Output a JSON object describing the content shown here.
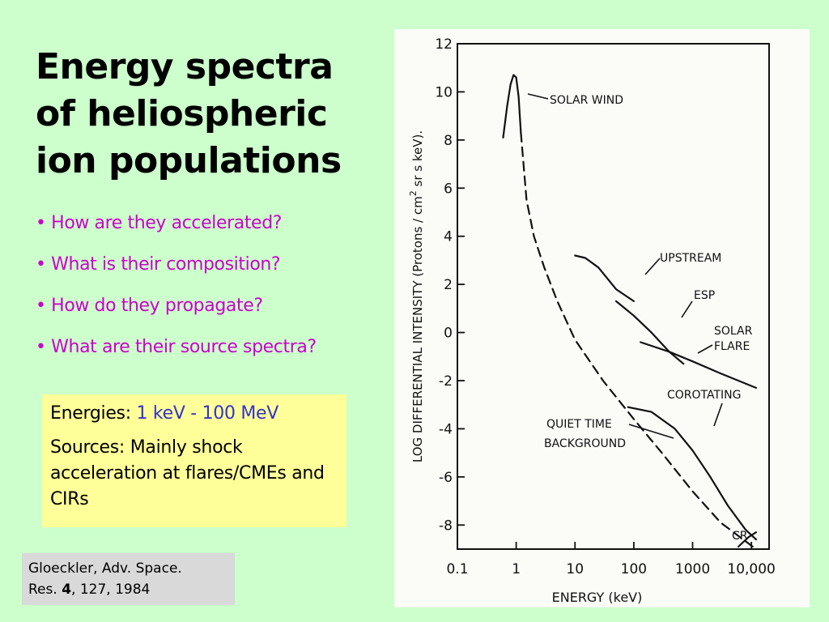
{
  "slide": {
    "title_lines": [
      "Energy spectra",
      "of heliospheric",
      "ion populations"
    ],
    "bullets": [
      "• How are they accelerated?",
      "• What is their composition?",
      "• How do they propagate?",
      "• What are their source spectra?"
    ],
    "energies_label": "Energies:",
    "energies_value": "1 keV - 100 MeV",
    "sources_text": "Sources: Mainly shock acceleration at flares/CMEs and CIRs",
    "citation_line1": "Gloeckler, Adv. Space.",
    "citation_res": "Res.",
    "citation_vol": "4",
    "citation_rest": ", 127, 1984"
  },
  "colors": {
    "background": "#ccffcc",
    "title": "#000000",
    "bullet": "#cc00cc",
    "highlight": "#3333cc",
    "box": "#ffff99",
    "citation_box": "#d9d9d9"
  },
  "chart_data": {
    "type": "line",
    "xlabel": "ENERGY (keV)",
    "ylabel_parts": [
      "LOG DIFFERENTIAL INTENSITY (Protons / cm",
      "2",
      "sr s keV)."
    ],
    "x_scale": "log",
    "xlim": [
      0.1,
      20000
    ],
    "ylim": [
      -9,
      12
    ],
    "x_ticks": [
      {
        "v": 0.1,
        "label": "0.1"
      },
      {
        "v": 1,
        "label": "1"
      },
      {
        "v": 10,
        "label": "10"
      },
      {
        "v": 100,
        "label": "100"
      },
      {
        "v": 1000,
        "label": "1000"
      },
      {
        "v": 10000,
        "label": "10,000"
      }
    ],
    "y_ticks": [
      12,
      10,
      8,
      6,
      4,
      2,
      0,
      -2,
      -4,
      -6,
      -8
    ],
    "series": [
      {
        "name": "SOLAR WIND",
        "dash": false,
        "points": [
          [
            0.6,
            8.1
          ],
          [
            0.7,
            9.4
          ],
          [
            0.8,
            10.3
          ],
          [
            0.9,
            10.7
          ],
          [
            1.0,
            10.6
          ],
          [
            1.1,
            9.8
          ],
          [
            1.2,
            8.3
          ]
        ]
      },
      {
        "name": "QUIET TIME BACKGROUND",
        "dash": true,
        "points": [
          [
            1.2,
            8.3
          ],
          [
            1.5,
            5.5
          ],
          [
            2,
            4
          ],
          [
            3,
            2.7
          ],
          [
            5,
            1.3
          ],
          [
            10,
            -0.3
          ],
          [
            30,
            -2.0
          ],
          [
            100,
            -3.6
          ],
          [
            300,
            -5.0
          ],
          [
            1000,
            -6.6
          ],
          [
            3000,
            -7.9
          ],
          [
            12000,
            -9.0
          ]
        ]
      },
      {
        "name": "UPSTREAM",
        "dash": false,
        "points": [
          [
            10,
            3.2
          ],
          [
            15,
            3.1
          ],
          [
            25,
            2.7
          ],
          [
            50,
            1.8
          ],
          [
            100,
            1.3
          ]
        ]
      },
      {
        "name": "ESP",
        "dash": false,
        "points": [
          [
            50,
            1.3
          ],
          [
            100,
            0.7
          ],
          [
            200,
            0.0
          ],
          [
            400,
            -0.8
          ],
          [
            700,
            -1.3
          ]
        ]
      },
      {
        "name": "SOLAR FLARE",
        "dash": false,
        "points": [
          [
            130,
            -0.4
          ],
          [
            400,
            -0.8
          ],
          [
            1000,
            -1.2
          ],
          [
            3000,
            -1.7
          ],
          [
            12000,
            -2.3
          ]
        ]
      },
      {
        "name": "COROTATING",
        "dash": false,
        "points": [
          [
            80,
            -3.1
          ],
          [
            200,
            -3.3
          ],
          [
            500,
            -4.0
          ],
          [
            1000,
            -4.9
          ],
          [
            2000,
            -6.0
          ],
          [
            4000,
            -7.2
          ],
          [
            8000,
            -8.2
          ],
          [
            12000,
            -8.6
          ]
        ]
      },
      {
        "name": "CR",
        "dash": false,
        "points": [
          [
            6000,
            -8.9
          ],
          [
            9000,
            -8.5
          ],
          [
            12000,
            -8.3
          ]
        ]
      }
    ],
    "annotations": [
      {
        "label": "SOLAR WIND"
      },
      {
        "label": "UPSTREAM"
      },
      {
        "label": "ESP"
      },
      {
        "label": "SOLAR"
      },
      {
        "label": "FLARE"
      },
      {
        "label": "COROTATING"
      },
      {
        "label": "QUIET TIME"
      },
      {
        "label": "BACKGROUND"
      },
      {
        "label": "CR"
      }
    ]
  }
}
